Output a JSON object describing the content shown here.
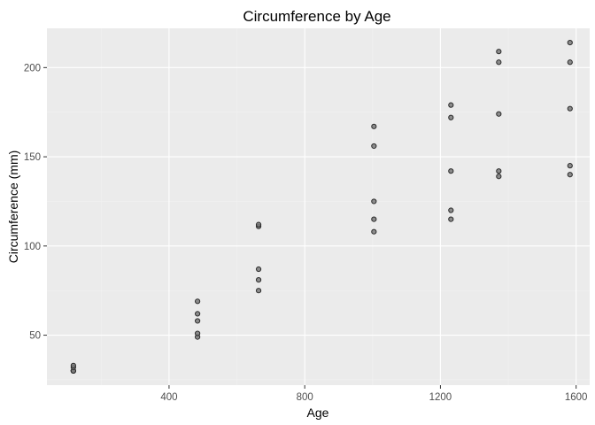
{
  "chart_data": {
    "type": "scatter",
    "title": "Circumference by Age",
    "xlabel": "Age",
    "ylabel": "Circumference (mm)",
    "xlim": [
      40,
      1640
    ],
    "ylim": [
      22,
      222
    ],
    "x_ticks": [
      400,
      800,
      1200,
      1600
    ],
    "y_ticks": [
      50,
      100,
      150,
      200
    ],
    "grid": true,
    "point_color": "#7a7a7a",
    "panel_background": "#ebebeb",
    "points": [
      {
        "x": 118,
        "y": 30
      },
      {
        "x": 118,
        "y": 30
      },
      {
        "x": 118,
        "y": 30
      },
      {
        "x": 118,
        "y": 32
      },
      {
        "x": 118,
        "y": 33
      },
      {
        "x": 484,
        "y": 49
      },
      {
        "x": 484,
        "y": 51
      },
      {
        "x": 484,
        "y": 58
      },
      {
        "x": 484,
        "y": 62
      },
      {
        "x": 484,
        "y": 69
      },
      {
        "x": 664,
        "y": 75
      },
      {
        "x": 664,
        "y": 81
      },
      {
        "x": 664,
        "y": 87
      },
      {
        "x": 664,
        "y": 111
      },
      {
        "x": 664,
        "y": 112
      },
      {
        "x": 1004,
        "y": 108
      },
      {
        "x": 1004,
        "y": 115
      },
      {
        "x": 1004,
        "y": 125
      },
      {
        "x": 1004,
        "y": 156
      },
      {
        "x": 1004,
        "y": 167
      },
      {
        "x": 1231,
        "y": 115
      },
      {
        "x": 1231,
        "y": 120
      },
      {
        "x": 1231,
        "y": 142
      },
      {
        "x": 1231,
        "y": 172
      },
      {
        "x": 1231,
        "y": 179
      },
      {
        "x": 1372,
        "y": 139
      },
      {
        "x": 1372,
        "y": 142
      },
      {
        "x": 1372,
        "y": 174
      },
      {
        "x": 1372,
        "y": 203
      },
      {
        "x": 1372,
        "y": 209
      },
      {
        "x": 1582,
        "y": 140
      },
      {
        "x": 1582,
        "y": 145
      },
      {
        "x": 1582,
        "y": 177
      },
      {
        "x": 1582,
        "y": 203
      },
      {
        "x": 1582,
        "y": 214
      }
    ]
  }
}
